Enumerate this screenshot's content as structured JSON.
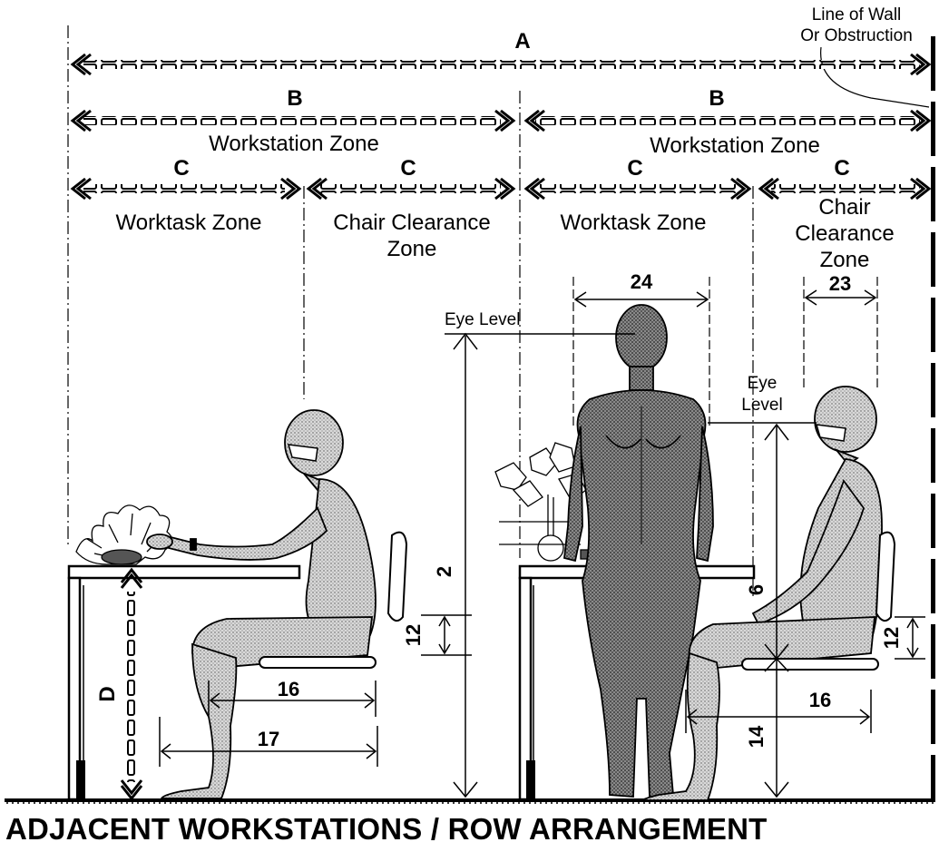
{
  "wall_note": {
    "line1": "Line of Wall",
    "line2": "Or Obstruction"
  },
  "dimensions": {
    "A": "A",
    "B_left": "B",
    "B_right": "B",
    "C1": "C",
    "C2": "C",
    "C3": "C",
    "C4": "C",
    "D": "D"
  },
  "zones": {
    "workstation_left": "Workstation Zone",
    "workstation_right": "Workstation Zone",
    "worktask_left": "Worktask Zone",
    "chair_clearance_left_l1": "Chair  Clearance",
    "chair_clearance_left_l2": "Zone",
    "worktask_right": "Worktask  Zone",
    "chair_clearance_right_l1": "Chair",
    "chair_clearance_right_l2": "Clearance",
    "chair_clearance_right_l3": "Zone"
  },
  "eye_level": {
    "standing": "Eye Level",
    "seated_l1": "Eye",
    "seated_l2": "Level"
  },
  "measurements": {
    "shoulder_width": "24",
    "chair_width": "23",
    "standing_eye_height": "2",
    "seated_eye_height": "6",
    "seat_back_left": "12",
    "seat_back_right": "12",
    "seat_depth_left": "16",
    "knee_depth_left": "17",
    "seat_depth_right": "16",
    "seat_height_right": "14"
  },
  "title": "ADJACENT WORKSTATIONS / ROW ARRANGEMENT",
  "colors": {
    "ink": "#000000",
    "figure_light": "#c9c9c9",
    "figure_dark": "#6a6a6a",
    "paper": "#ffffff"
  }
}
